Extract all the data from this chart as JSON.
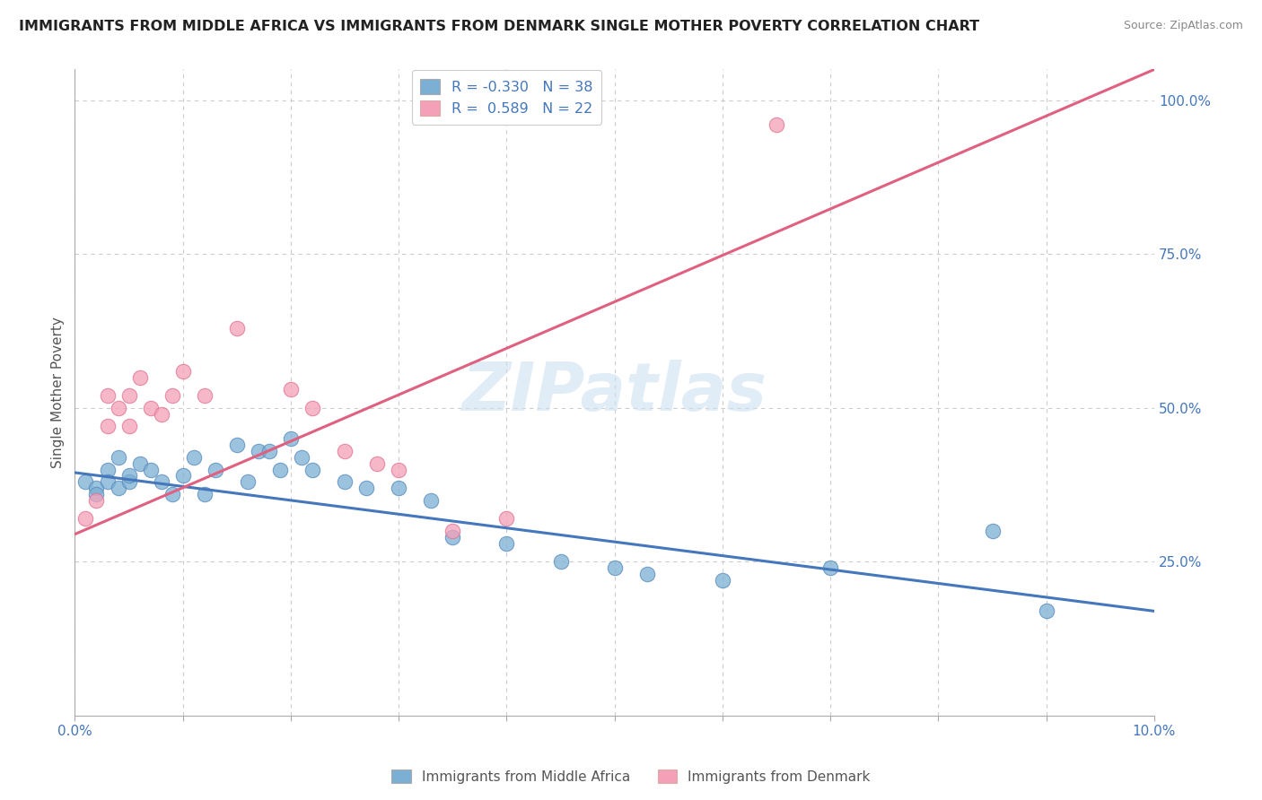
{
  "title": "IMMIGRANTS FROM MIDDLE AFRICA VS IMMIGRANTS FROM DENMARK SINGLE MOTHER POVERTY CORRELATION CHART",
  "source": "Source: ZipAtlas.com",
  "ylabel": "Single Mother Poverty",
  "watermark": "ZIPatlas",
  "blue_r": "-0.330",
  "blue_n": "38",
  "pink_r": "0.589",
  "pink_n": "22",
  "blue_scatter_x": [
    0.001,
    0.002,
    0.002,
    0.003,
    0.003,
    0.004,
    0.004,
    0.005,
    0.005,
    0.006,
    0.007,
    0.008,
    0.009,
    0.01,
    0.011,
    0.012,
    0.013,
    0.015,
    0.016,
    0.017,
    0.018,
    0.019,
    0.02,
    0.021,
    0.022,
    0.025,
    0.027,
    0.03,
    0.033,
    0.035,
    0.04,
    0.045,
    0.05,
    0.053,
    0.06,
    0.07,
    0.085,
    0.09
  ],
  "blue_scatter_y": [
    0.38,
    0.37,
    0.36,
    0.4,
    0.38,
    0.42,
    0.37,
    0.38,
    0.39,
    0.41,
    0.4,
    0.38,
    0.36,
    0.39,
    0.42,
    0.36,
    0.4,
    0.44,
    0.38,
    0.43,
    0.43,
    0.4,
    0.45,
    0.42,
    0.4,
    0.38,
    0.37,
    0.37,
    0.35,
    0.29,
    0.28,
    0.25,
    0.24,
    0.23,
    0.22,
    0.24,
    0.3,
    0.17
  ],
  "pink_scatter_x": [
    0.001,
    0.002,
    0.003,
    0.003,
    0.004,
    0.005,
    0.005,
    0.006,
    0.007,
    0.008,
    0.009,
    0.01,
    0.012,
    0.015,
    0.02,
    0.022,
    0.025,
    0.028,
    0.03,
    0.035,
    0.04,
    0.065
  ],
  "pink_scatter_y": [
    0.32,
    0.35,
    0.47,
    0.52,
    0.5,
    0.47,
    0.52,
    0.55,
    0.5,
    0.49,
    0.52,
    0.56,
    0.52,
    0.63,
    0.53,
    0.5,
    0.43,
    0.41,
    0.4,
    0.3,
    0.32,
    0.96
  ],
  "blue_line_x": [
    0.0,
    0.1
  ],
  "blue_line_y": [
    0.395,
    0.17
  ],
  "pink_line_x": [
    0.0,
    0.1
  ],
  "pink_line_y": [
    0.295,
    1.05
  ],
  "xlim": [
    0.0,
    0.1
  ],
  "ylim": [
    0.0,
    1.05
  ],
  "yticks": [
    0.25,
    0.5,
    0.75,
    1.0
  ],
  "ytick_labels": [
    "25.0%",
    "50.0%",
    "75.0%",
    "100.0%"
  ],
  "blue_color": "#7bafd4",
  "blue_color_edge": "#5588bb",
  "pink_color": "#f4a0b8",
  "pink_color_edge": "#e07090",
  "blue_line_color": "#4477bb",
  "pink_line_color": "#e06080",
  "grid_color": "#cccccc",
  "axis_color": "#aaaaaa",
  "label_color": "#4477bb",
  "background_color": "#ffffff",
  "legend_label_color": "#333333",
  "r_value_color": "#4477bb"
}
